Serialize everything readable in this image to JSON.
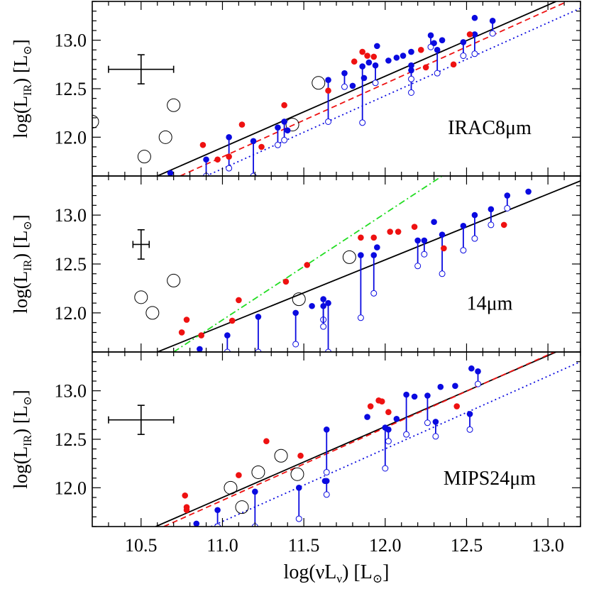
{
  "chart_data": {
    "type": "scatter",
    "xlabel": "log(νL",
    "xlabel_sub": "ν",
    "xlabel_unit": ") [L",
    "xlabel_close": "]",
    "ylabel": "log(L",
    "ylabel_sub": "IR",
    "ylabel_unit": ") [L",
    "ylabel_close": "]",
    "sun_symbol": "⊙",
    "xlim": [
      10.2,
      13.2
    ],
    "ylim": [
      11.6,
      13.4
    ],
    "xticks": [
      10.5,
      11.0,
      11.5,
      12.0,
      12.5,
      13.0
    ],
    "xtick_labels": [
      "10.5",
      "11.0",
      "11.5",
      "12.0",
      "12.5",
      "13.0"
    ],
    "yticks": [
      12.0,
      12.5,
      13.0
    ],
    "ytick_labels": [
      "12.0",
      "12.5",
      "13.0"
    ],
    "colors": {
      "red": "#ee1111",
      "blue": "#0a0ae0",
      "green": "#22dd22",
      "black": "#000000"
    },
    "panels": [
      {
        "label": "IRAC8μm",
        "errorbar": {
          "x": 10.5,
          "y": 12.7,
          "xerr": 0.2,
          "yerr": 0.15
        },
        "lines": [
          {
            "style": "solid",
            "color": "black",
            "points": [
              [
                10.6,
                11.6
              ],
              [
                13.05,
                13.4
              ]
            ]
          },
          {
            "style": "dashed",
            "color": "red",
            "points": [
              [
                10.74,
                11.6
              ],
              [
                13.12,
                13.4
              ]
            ]
          },
          {
            "style": "dotted",
            "color": "blue",
            "points": [
              [
                10.9,
                11.6
              ],
              [
                13.2,
                13.33
              ]
            ]
          }
        ],
        "open_large": [
          [
            10.2,
            12.16
          ],
          [
            10.52,
            11.8
          ],
          [
            10.65,
            12.0
          ],
          [
            10.7,
            12.33
          ],
          [
            11.43,
            12.13
          ],
          [
            11.59,
            12.56
          ]
        ],
        "red": [
          [
            10.88,
            11.92
          ],
          [
            10.97,
            11.77
          ],
          [
            11.04,
            11.8
          ],
          [
            11.12,
            12.13
          ],
          [
            11.24,
            11.9
          ],
          [
            11.38,
            12.33
          ],
          [
            11.65,
            12.48
          ],
          [
            11.81,
            12.78
          ],
          [
            11.86,
            12.88
          ],
          [
            11.89,
            12.84
          ],
          [
            11.93,
            12.83
          ],
          [
            12.22,
            12.9
          ],
          [
            12.25,
            12.72
          ],
          [
            12.42,
            12.75
          ],
          [
            12.52,
            13.06
          ]
        ],
        "blue_connected": [
          [
            10.9,
            11.77,
            11.6
          ],
          [
            11.04,
            12.0,
            11.68
          ],
          [
            11.19,
            11.96,
            11.6
          ],
          [
            11.34,
            12.1,
            11.92
          ],
          [
            11.38,
            12.16,
            11.97
          ],
          [
            11.65,
            12.59,
            12.16
          ],
          [
            11.75,
            12.66,
            12.52
          ],
          [
            11.86,
            12.73,
            12.15
          ],
          [
            11.94,
            12.74,
            12.56
          ],
          [
            12.16,
            12.69,
            12.46
          ],
          [
            12.16,
            12.74,
            12.6
          ],
          [
            12.28,
            13.05,
            12.93
          ],
          [
            12.32,
            12.9,
            12.66
          ],
          [
            12.48,
            12.98,
            12.84
          ],
          [
            12.55,
            13.06,
            12.86
          ],
          [
            12.66,
            13.2,
            13.07
          ]
        ],
        "blue": [
          [
            10.68,
            11.63
          ],
          [
            11.4,
            12.07
          ],
          [
            11.8,
            12.53
          ],
          [
            11.87,
            12.61
          ],
          [
            11.9,
            12.77
          ],
          [
            11.95,
            12.94
          ],
          [
            12.02,
            12.79
          ],
          [
            12.07,
            12.82
          ],
          [
            12.11,
            12.84
          ],
          [
            12.16,
            12.88
          ],
          [
            12.3,
            12.97
          ],
          [
            12.35,
            13.0
          ],
          [
            12.55,
            13.23
          ]
        ]
      },
      {
        "label": "14μm",
        "errorbar": {
          "x": 10.5,
          "y": 12.7,
          "xerr": 0.05,
          "yerr": 0.15
        },
        "lines": [
          {
            "style": "solid",
            "color": "black",
            "points": [
              [
                10.6,
                11.6
              ],
              [
                13.2,
                13.35
              ]
            ]
          },
          {
            "style": "dashdot",
            "color": "green",
            "points": [
              [
                10.7,
                11.6
              ],
              [
                12.35,
                13.4
              ]
            ]
          }
        ],
        "open_large": [
          [
            10.5,
            12.16
          ],
          [
            10.57,
            12.0
          ],
          [
            10.7,
            12.33
          ],
          [
            11.47,
            12.14
          ],
          [
            11.78,
            12.57
          ]
        ],
        "red": [
          [
            10.75,
            11.8
          ],
          [
            10.78,
            11.93
          ],
          [
            10.87,
            11.77
          ],
          [
            11.06,
            11.92
          ],
          [
            11.1,
            12.13
          ],
          [
            11.39,
            12.32
          ],
          [
            11.52,
            12.49
          ],
          [
            11.85,
            12.77
          ],
          [
            11.93,
            12.77
          ],
          [
            12.03,
            12.83
          ],
          [
            12.08,
            12.83
          ],
          [
            12.18,
            12.88
          ],
          [
            12.36,
            12.66
          ],
          [
            12.73,
            12.9
          ]
        ],
        "blue_connected": [
          [
            11.03,
            11.77,
            11.6
          ],
          [
            11.22,
            11.96,
            11.6
          ],
          [
            11.45,
            12.0,
            11.68
          ],
          [
            11.62,
            12.14,
            11.93
          ],
          [
            11.62,
            12.07,
            11.86
          ],
          [
            11.65,
            12.1,
            11.6
          ],
          [
            11.85,
            12.59,
            11.95
          ],
          [
            11.93,
            12.59,
            12.2
          ],
          [
            12.2,
            12.74,
            12.48
          ],
          [
            12.24,
            12.74,
            12.6
          ],
          [
            12.35,
            12.8,
            12.4
          ],
          [
            12.48,
            12.89,
            12.64
          ],
          [
            12.55,
            13.0,
            12.76
          ],
          [
            12.65,
            13.06,
            12.9
          ],
          [
            12.75,
            13.2,
            13.07
          ]
        ],
        "blue": [
          [
            10.86,
            11.63
          ],
          [
            11.55,
            12.07
          ],
          [
            11.95,
            12.67
          ],
          [
            12.3,
            12.93
          ],
          [
            12.88,
            13.24
          ]
        ]
      },
      {
        "label": "MIPS24μm",
        "errorbar": {
          "x": 10.5,
          "y": 12.7,
          "xerr": 0.2,
          "yerr": 0.15
        },
        "lines": [
          {
            "style": "solid",
            "color": "black",
            "points": [
              [
                10.59,
                11.6
              ],
              [
                13.05,
                13.4
              ]
            ]
          },
          {
            "style": "dashed",
            "color": "red",
            "points": [
              [
                10.64,
                11.6
              ],
              [
                13.04,
                13.4
              ]
            ]
          },
          {
            "style": "dotted",
            "color": "blue",
            "points": [
              [
                10.93,
                11.6
              ],
              [
                13.2,
                13.3
              ]
            ]
          }
        ],
        "open_large": [
          [
            11.05,
            12.0
          ],
          [
            11.12,
            11.8
          ],
          [
            11.22,
            12.16
          ],
          [
            11.36,
            12.33
          ],
          [
            11.46,
            12.14
          ]
        ],
        "red": [
          [
            10.77,
            11.92
          ],
          [
            10.78,
            11.8
          ],
          [
            10.78,
            11.77
          ],
          [
            11.1,
            12.13
          ],
          [
            11.27,
            12.48
          ],
          [
            11.48,
            12.33
          ],
          [
            11.91,
            12.84
          ],
          [
            11.96,
            12.9
          ],
          [
            11.98,
            12.89
          ],
          [
            12.02,
            12.78
          ],
          [
            12.44,
            12.84
          ]
        ],
        "blue_connected": [
          [
            10.97,
            11.77,
            11.6
          ],
          [
            11.2,
            11.96,
            11.6
          ],
          [
            11.47,
            12.0,
            11.68
          ],
          [
            11.64,
            12.6,
            12.16
          ],
          [
            11.64,
            12.07,
            11.93
          ],
          [
            12.0,
            12.62,
            12.2
          ],
          [
            12.02,
            12.6,
            12.48
          ],
          [
            12.13,
            12.96,
            12.55
          ],
          [
            12.26,
            12.95,
            12.67
          ],
          [
            12.31,
            12.68,
            12.53
          ],
          [
            12.52,
            12.76,
            12.6
          ],
          [
            12.57,
            13.2,
            13.07
          ]
        ],
        "blue": [
          [
            10.84,
            11.63
          ],
          [
            11.63,
            12.07
          ],
          [
            11.89,
            12.73
          ],
          [
            12.07,
            12.71
          ],
          [
            12.18,
            12.94
          ],
          [
            12.34,
            13.04
          ],
          [
            12.43,
            13.05
          ],
          [
            12.53,
            13.23
          ]
        ]
      }
    ]
  }
}
